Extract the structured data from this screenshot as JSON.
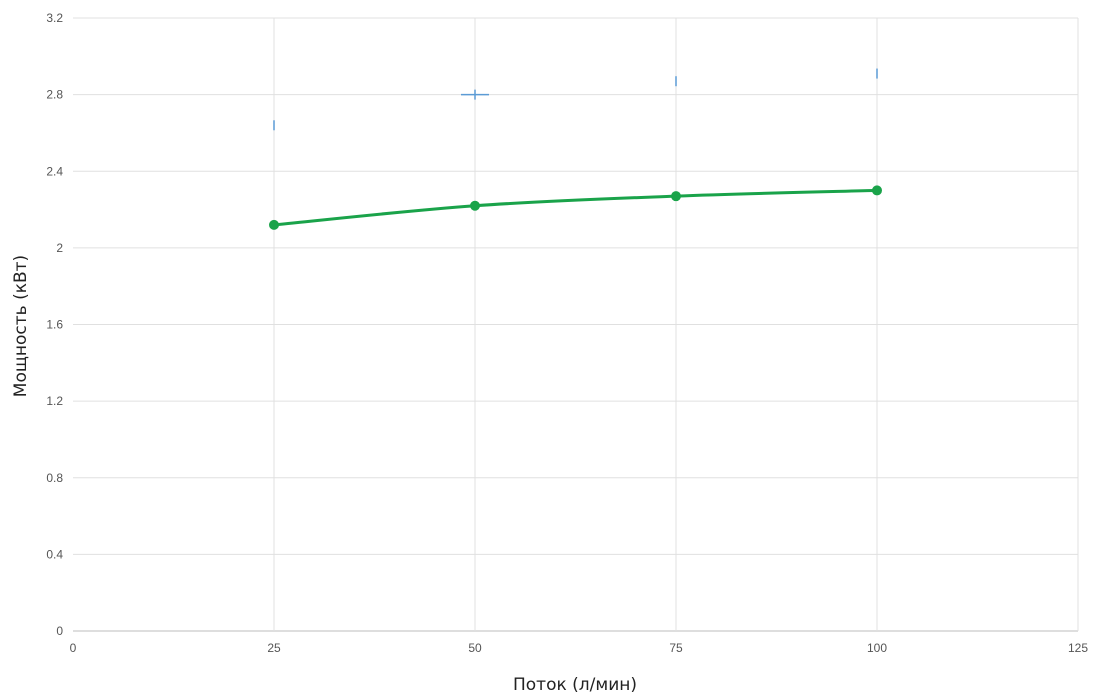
{
  "chart_data": {
    "type": "line",
    "title": "",
    "xlabel": "Поток (л/мин)",
    "ylabel": "Мощность (кВт)",
    "xlim": [
      0,
      125
    ],
    "ylim": [
      0,
      3.2
    ],
    "x_ticks": [
      0,
      25,
      50,
      75,
      100,
      125
    ],
    "y_ticks": [
      0,
      0.4,
      0.8,
      1.2,
      1.6,
      2,
      2.4,
      2.8,
      3.2
    ],
    "x_tick_labels": [
      "0",
      "25",
      "50",
      "75",
      "100",
      "125"
    ],
    "y_tick_labels": [
      "0",
      "0.4",
      "0.8",
      "1.2",
      "1.6",
      "2",
      "2.4",
      "2.8",
      "3.2"
    ],
    "grid": true,
    "legend": "none",
    "series": [
      {
        "color": "#1aa34a",
        "style": "line-with-markers",
        "x": [
          25,
          50,
          75,
          100
        ],
        "y": [
          2.12,
          2.22,
          2.27,
          2.3
        ]
      },
      {
        "color": "#5b9bd5",
        "style": "marker-only",
        "x": [
          25,
          50,
          75,
          100
        ],
        "y": [
          2.64,
          2.8,
          2.87,
          2.91
        ]
      }
    ]
  }
}
